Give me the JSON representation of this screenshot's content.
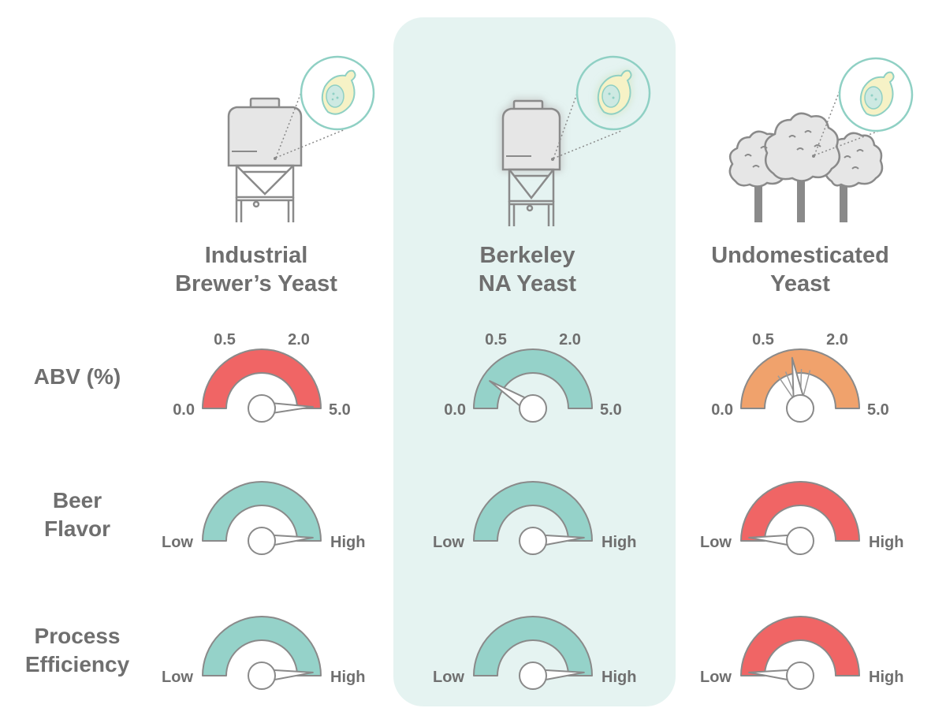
{
  "columns": [
    {
      "title_line1": "Industrial",
      "title_line2": "Brewer’s Yeast",
      "illustration": "fermenter-tank-with-yeast-cell",
      "highlighted": false
    },
    {
      "title_line1": "Berkeley",
      "title_line2": "NA Yeast",
      "illustration": "fermenter-tank-with-glowing-yeast-cell",
      "highlighted": true
    },
    {
      "title_line1": "Undomesticated",
      "title_line2": "Yeast",
      "illustration": "trees-with-yeast-cell",
      "highlighted": false
    }
  ],
  "rows": [
    {
      "label_line1": "ABV (%)",
      "label_line2": ""
    },
    {
      "label_line1": "Beer",
      "label_line2": "Flavor"
    },
    {
      "label_line1": "Process",
      "label_line2": "Efficiency"
    }
  ],
  "abv_scale": {
    "min_label": "0.0",
    "tick_a_label": "0.5",
    "tick_b_label": "2.0",
    "max_label": "5.0"
  },
  "level_scale": {
    "low_label": "Low",
    "high_label": "High"
  },
  "colors": {
    "teal": "#95d2c9",
    "red": "#f06565",
    "orange": "#f0a26c",
    "title_gray": "#6f6f6f",
    "highlight_bg": "#e5f3f1",
    "outline": "#8a8a8a"
  },
  "gauges": [
    {
      "column": 0,
      "row": 0,
      "color": "red",
      "needle_fraction": 0.99
    },
    {
      "column": 1,
      "row": 0,
      "color": "teal",
      "needle_fraction": 0.18
    },
    {
      "column": 2,
      "row": 0,
      "color": "orange",
      "needle_fraction": 0.45,
      "needle_wobble": true
    },
    {
      "column": 0,
      "row": 1,
      "color": "teal",
      "needle_fraction": 0.98
    },
    {
      "column": 1,
      "row": 1,
      "color": "teal",
      "needle_fraction": 0.98
    },
    {
      "column": 2,
      "row": 1,
      "color": "red",
      "needle_fraction": 0.02
    },
    {
      "column": 0,
      "row": 2,
      "color": "teal",
      "needle_fraction": 0.98
    },
    {
      "column": 1,
      "row": 2,
      "color": "teal",
      "needle_fraction": 0.98
    },
    {
      "column": 2,
      "row": 2,
      "color": "red",
      "needle_fraction": 0.02
    }
  ]
}
